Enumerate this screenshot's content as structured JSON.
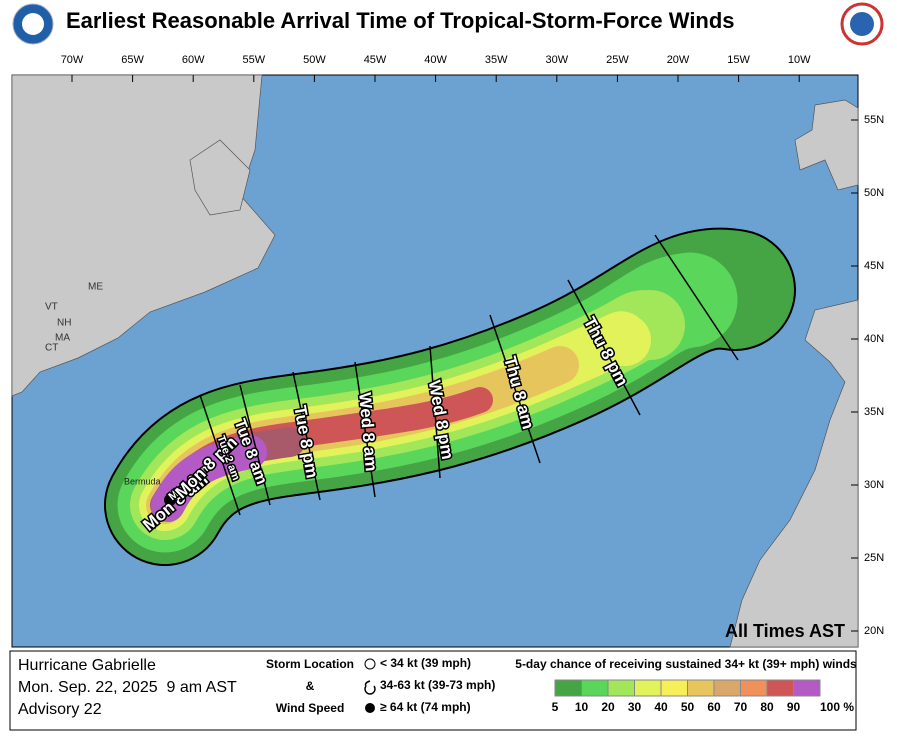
{
  "header": {
    "title": "Earliest Reasonable Arrival Time of Tropical-Storm-Force Winds"
  },
  "map": {
    "lon_labels": [
      "70W",
      "65W",
      "60W",
      "55W",
      "50W",
      "45W",
      "40W",
      "35W",
      "30W",
      "25W",
      "20W",
      "15W",
      "10W"
    ],
    "lat_labels": [
      "55N",
      "50N",
      "45N",
      "40N",
      "35N",
      "30N",
      "25N",
      "20N"
    ],
    "state_labels": [
      "ME",
      "VT",
      "NH",
      "MA",
      "CT"
    ],
    "place_labels": [
      "Bermuda"
    ],
    "arrival_labels": [
      "Mon 8 am",
      "Mon 2 pm",
      "Mon 8 pm",
      "Tue 2 am",
      "Tue 8 am",
      "Tue 8 pm",
      "Wed 8 am",
      "Wed 8 pm",
      "Thu 8 am",
      "Thu 8 pm"
    ],
    "time_note": "All Times AST"
  },
  "footer": {
    "storm": "Hurricane Gabrielle",
    "issued": "Mon. Sep. 22, 2025  9 am AST",
    "advisory": "Advisory 22",
    "legend_title": [
      "Storm Location",
      "&",
      "Wind Speed"
    ],
    "legend_items": [
      "< 34 kt (39 mph)",
      "34-63 kt (39-73 mph)",
      "≥ 64 kt (74 mph)"
    ],
    "scale_title": "5-day chance of receiving sustained 34+ kt (39+ mph) winds",
    "scale_labels": [
      "5",
      "10",
      "20",
      "30",
      "40",
      "50",
      "60",
      "70",
      "80",
      "90",
      "100 %"
    ],
    "scale_colors": [
      "#45a545",
      "#5ad65a",
      "#a2e65a",
      "#e2f25a",
      "#f6ef5a",
      "#e6c65c",
      "#d7a86a",
      "#f0905a",
      "#cf5656",
      "#a85a6a"
    ]
  }
}
